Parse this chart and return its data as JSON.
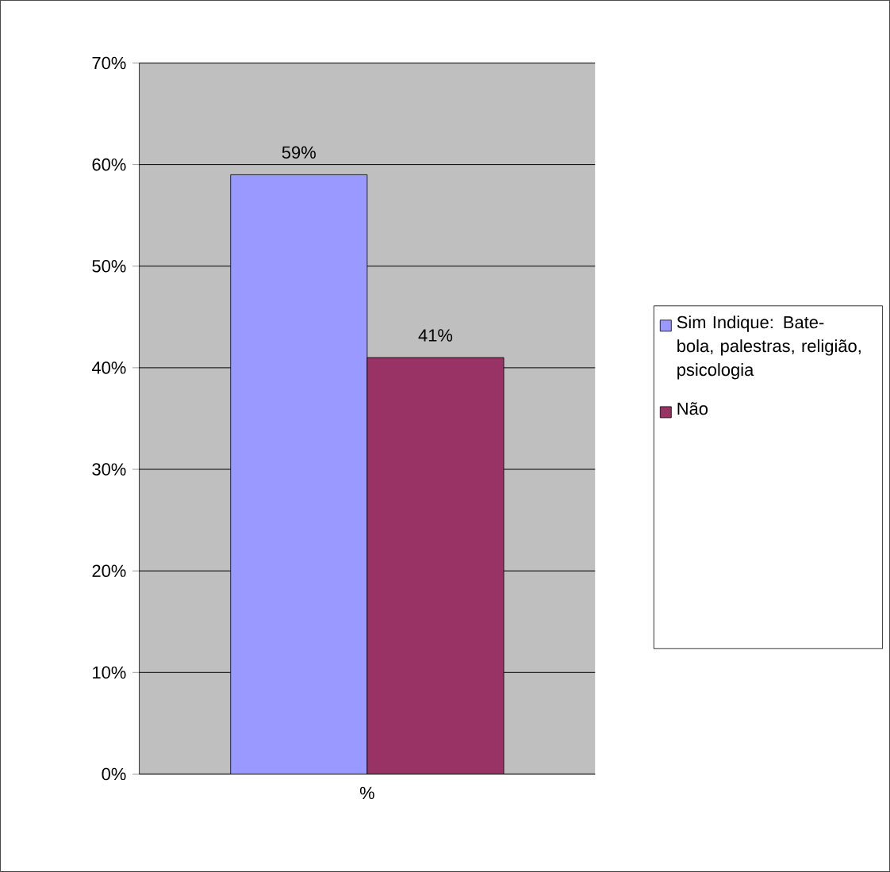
{
  "chart_data": {
    "type": "bar",
    "categories": [
      "%"
    ],
    "series": [
      {
        "name": "Sim Indique: Bate-bola, palestras, religião, psicologia",
        "color": "#9999ff",
        "values": [
          59
        ],
        "value_labels": [
          "59%"
        ]
      },
      {
        "name": "Não",
        "color": "#993366",
        "values": [
          41
        ],
        "value_labels": [
          "41%"
        ]
      }
    ],
    "ylim": [
      0,
      70
    ],
    "yticks": [
      {
        "value": 0,
        "label": "0%"
      },
      {
        "value": 10,
        "label": "10%"
      },
      {
        "value": 20,
        "label": "20%"
      },
      {
        "value": 30,
        "label": "30%"
      },
      {
        "value": 40,
        "label": "40%"
      },
      {
        "value": 50,
        "label": "50%"
      },
      {
        "value": 60,
        "label": "60%"
      },
      {
        "value": 70,
        "label": "70%"
      }
    ],
    "grid": "y",
    "legend": "right"
  }
}
